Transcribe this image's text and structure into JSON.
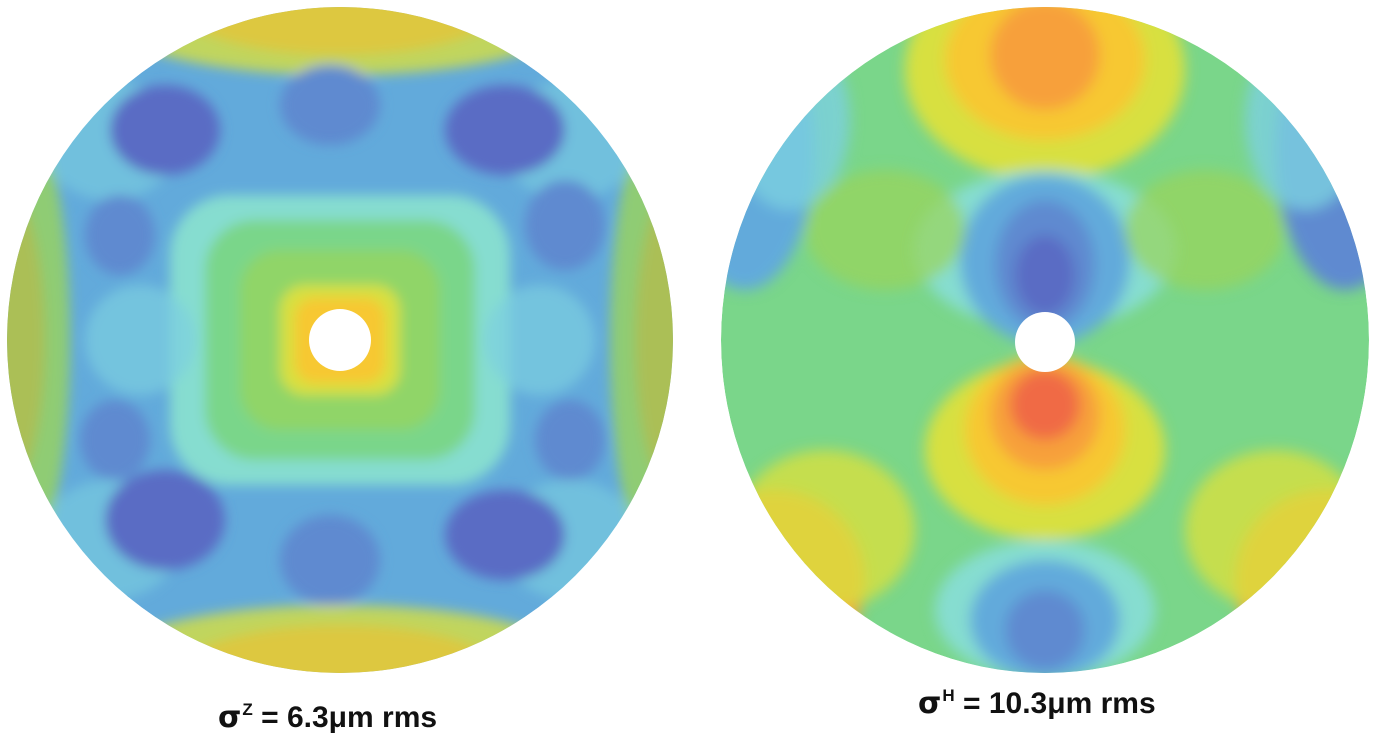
{
  "figures": [
    {
      "id": "sigma-z",
      "symbol": "σ",
      "superscript": "Z",
      "caption_rest": " = 6.3μm rms"
    },
    {
      "id": "sigma-h",
      "symbol": "σ",
      "superscript": "H",
      "caption_rest": " = 10.3μm rms"
    }
  ],
  "colormap": [
    "#5a6cc4",
    "#5f8ad0",
    "#62aadb",
    "#7ccfe0",
    "#86ddd0",
    "#7ad68a",
    "#9ad45a",
    "#d8e040",
    "#f7c832",
    "#f7a03a",
    "#f06a45"
  ]
}
